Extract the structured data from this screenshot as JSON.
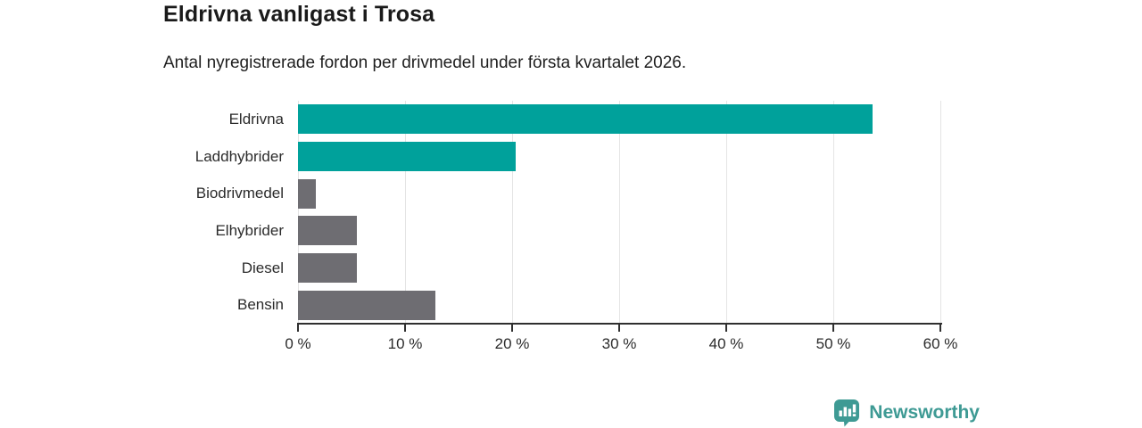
{
  "header": {
    "title": "Eldrivna vanligast i Trosa",
    "subtitle": "Antal nyregistrerade fordon per drivmedel under första kvartalet 2026."
  },
  "chart_data": {
    "type": "bar",
    "orientation": "horizontal",
    "title": "Eldrivna vanligast i Trosa",
    "subtitle": "Antal nyregistrerade fordon per drivmedel under första kvartalet 2026.",
    "categories": [
      "Eldrivna",
      "Laddhybrider",
      "Biodrivmedel",
      "Elhybrider",
      "Diesel",
      "Bensin"
    ],
    "values": [
      53.7,
      20.3,
      1.7,
      5.5,
      5.5,
      12.8
    ],
    "unit": "%",
    "bar_colors": [
      "#00A19B",
      "#00A19B",
      "#6E6D72",
      "#6E6D72",
      "#6E6D72",
      "#6E6D72"
    ],
    "highlight_color": "#00A19B",
    "default_color": "#6E6D72",
    "xlabel": "",
    "ylabel": "",
    "xlim": [
      0,
      60
    ],
    "x_ticks": [
      "0 %",
      "10 %",
      "20 %",
      "30 %",
      "40 %",
      "50 %",
      "60 %"
    ],
    "x_tick_values": [
      0,
      10,
      20,
      30,
      40,
      50,
      60
    ],
    "grid": true,
    "gridline_color": "#e4e4e4",
    "axis_color": "#2f2f2f",
    "legend_position": "none"
  },
  "footer": {
    "brand": "Newsworthy",
    "brand_color": "#3E9A94"
  }
}
